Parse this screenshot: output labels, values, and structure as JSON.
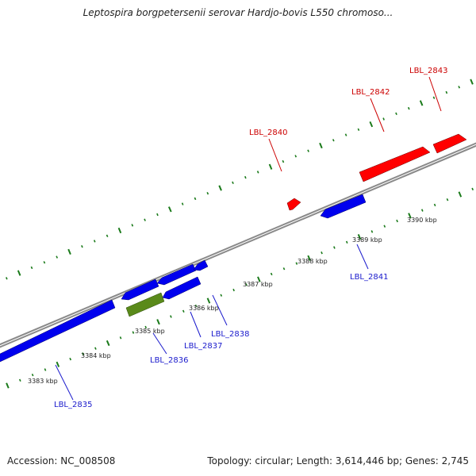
{
  "title": "Leptospira borgpetersenii serovar Hardjo-bovis L550 chromoso...",
  "footer": {
    "accession": "Accession: NC_008508",
    "summary": "Topology: circular; Length: 3,614,446 bp; Genes: 2,745"
  },
  "colors": {
    "forward_gene": "#ff0000",
    "reverse_gene": "#0000ee",
    "other_gene": "#5a8a1a",
    "backbone": "#8a8a8a",
    "tick": "#1a7a1a",
    "forward_label": "#cc0000",
    "reverse_label": "#1a1acc"
  },
  "scale_labels": [
    "3383 kbp",
    "3384 kbp",
    "3385 kbp",
    "3386 kbp",
    "3387 kbp",
    "3388 kbp",
    "3389 kbp",
    "3390 kbp"
  ],
  "genes": [
    {
      "label": "LBL_2835",
      "strand": "reverse"
    },
    {
      "label": "LBL_2836",
      "strand": "reverse"
    },
    {
      "label": "LBL_2837",
      "strand": "reverse"
    },
    {
      "label": "LBL_2838",
      "strand": "reverse"
    },
    {
      "label": "LBL_2840",
      "strand": "forward"
    },
    {
      "label": "LBL_2841",
      "strand": "reverse"
    },
    {
      "label": "LBL_2842",
      "strand": "forward"
    },
    {
      "label": "LBL_2843",
      "strand": "forward"
    }
  ]
}
